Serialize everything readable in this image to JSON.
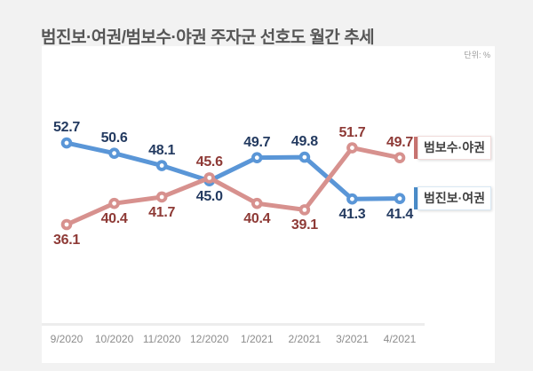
{
  "header": {
    "title": "범진보·여권/범보수·야권 주자군 선호도 월간 추세",
    "unit_label": "단위: %"
  },
  "legend": {
    "items": [
      {
        "label": "범보수·야권",
        "bar_color": "#c87370",
        "border_color": "#f0dbda"
      },
      {
        "label": "범진보·여권",
        "bar_color": "#4a8cc8",
        "border_color": "#d9e8f4"
      }
    ]
  },
  "chart_data": {
    "type": "line",
    "title": "범진보·여권/범보수·야권 주자군 선호도 월간 추세",
    "unit": "%",
    "categories": [
      "9/2020",
      "10/2020",
      "11/2020",
      "12/2020",
      "1/2021",
      "2/2021",
      "3/2021",
      "4/2021"
    ],
    "series": [
      {
        "name": "범진보·여권",
        "color": "#5a96d7",
        "label_color": "#233a60",
        "values": [
          52.7,
          50.6,
          48.1,
          45.0,
          49.7,
          49.8,
          41.3,
          41.4
        ],
        "label_side": [
          "above",
          "above",
          "above",
          "below",
          "above",
          "above",
          "below",
          "below"
        ]
      },
      {
        "name": "범보수·야권",
        "color": "#d7918e",
        "label_color": "#8e3a36",
        "values": [
          36.1,
          40.4,
          41.7,
          45.6,
          40.4,
          39.1,
          51.7,
          49.7
        ],
        "label_side": [
          "below",
          "below",
          "below",
          "above",
          "below",
          "below",
          "above",
          "above"
        ]
      }
    ],
    "xlabel": "",
    "ylabel": "단위: %",
    "ylim": [
      30,
      60
    ],
    "grid": false,
    "value_labels": true,
    "legend_position": "right"
  }
}
